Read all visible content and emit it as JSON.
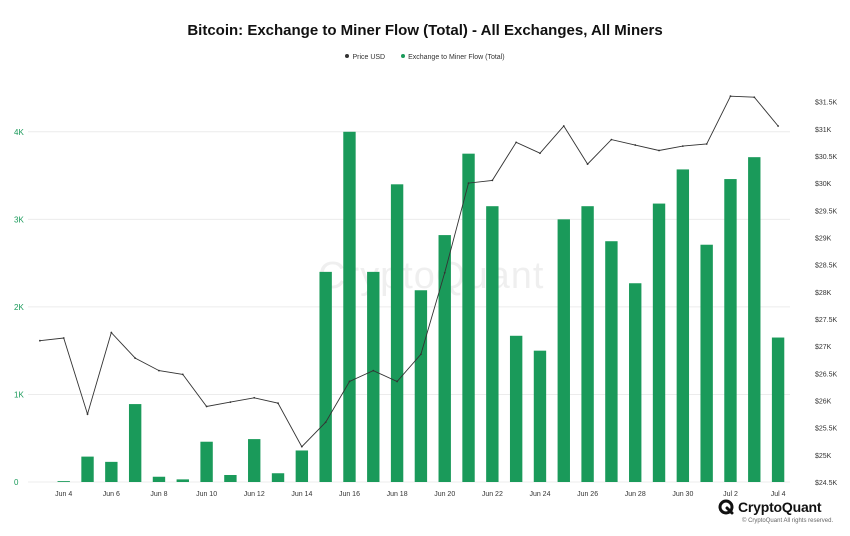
{
  "title": "Bitcoin: Exchange to Miner Flow (Total) - All Exchanges, All Miners",
  "legend": [
    {
      "label": "Price USD",
      "color": "#333333"
    },
    {
      "label": "Exchange to Miner Flow (Total)",
      "color": "#1a9a5a"
    }
  ],
  "watermark": "CryptoQuant",
  "brand": {
    "name": "CryptoQuant",
    "copyright": "© CryptoQuant All rights reserved.",
    "icon": "cryptoquant-logo-icon"
  },
  "chart_data": {
    "type": "bar",
    "title": "Bitcoin: Exchange to Miner Flow (Total) - All Exchanges, All Miners",
    "categories": [
      "Jun 3",
      "Jun 4",
      "Jun 5",
      "Jun 6",
      "Jun 7",
      "Jun 8",
      "Jun 9",
      "Jun 10",
      "Jun 11",
      "Jun 12",
      "Jun 13",
      "Jun 14",
      "Jun 15",
      "Jun 16",
      "Jun 17",
      "Jun 18",
      "Jun 19",
      "Jun 20",
      "Jun 21",
      "Jun 22",
      "Jun 23",
      "Jun 24",
      "Jun 25",
      "Jun 26",
      "Jun 27",
      "Jun 28",
      "Jun 29",
      "Jun 30",
      "Jul 1",
      "Jul 2",
      "Jul 3",
      "Jul 4"
    ],
    "x_tick_labels": [
      "Jun 4",
      "Jun 6",
      "Jun 8",
      "Jun 10",
      "Jun 12",
      "Jun 14",
      "Jun 16",
      "Jun 18",
      "Jun 20",
      "Jun 22",
      "Jun 24",
      "Jun 26",
      "Jun 28",
      "Jun 30",
      "Jul 2",
      "Jul 4"
    ],
    "series": [
      {
        "name": "Exchange to Miner Flow (Total)",
        "axis": "left",
        "color": "#1a9a5a",
        "values": [
          null,
          10,
          290,
          230,
          890,
          60,
          30,
          460,
          80,
          490,
          100,
          360,
          2400,
          4000,
          2400,
          3400,
          2190,
          2820,
          3750,
          3150,
          1670,
          1500,
          3000,
          3150,
          2750,
          2270,
          3180,
          3570,
          2710,
          3460,
          3710,
          1650
        ]
      },
      {
        "name": "Price USD",
        "axis": "right",
        "color": "#333333",
        "style": "line",
        "values": [
          27100,
          27150,
          25750,
          27250,
          26780,
          26550,
          26480,
          25890,
          25970,
          26050,
          25950,
          25150,
          25600,
          26350,
          26550,
          26350,
          26850,
          28350,
          30000,
          30050,
          30750,
          30550,
          31050,
          30350,
          30800,
          30700,
          30600,
          30680,
          30720,
          31600,
          31580,
          31050
        ]
      }
    ],
    "y_left": {
      "ticks": [
        0,
        1000,
        2000,
        3000,
        4000
      ],
      "tick_labels": [
        "0",
        "1K",
        "2K",
        "3K",
        "4K"
      ],
      "range": [
        0,
        4500
      ]
    },
    "y_right": {
      "ticks": [
        24500,
        25000,
        25500,
        26000,
        26500,
        27000,
        27500,
        28000,
        28500,
        29000,
        29500,
        30000,
        30500,
        31000,
        31500
      ],
      "tick_labels": [
        "$24.5K",
        "$25K",
        "$25.5K",
        "$26K",
        "$26.5K",
        "$27K",
        "$27.5K",
        "$28K",
        "$28.5K",
        "$29K",
        "$29.5K",
        "$30K",
        "$30.5K",
        "$31K",
        "$31.5K"
      ],
      "range": [
        24500,
        31750
      ]
    },
    "grid": true,
    "legend_position": "top-center"
  }
}
